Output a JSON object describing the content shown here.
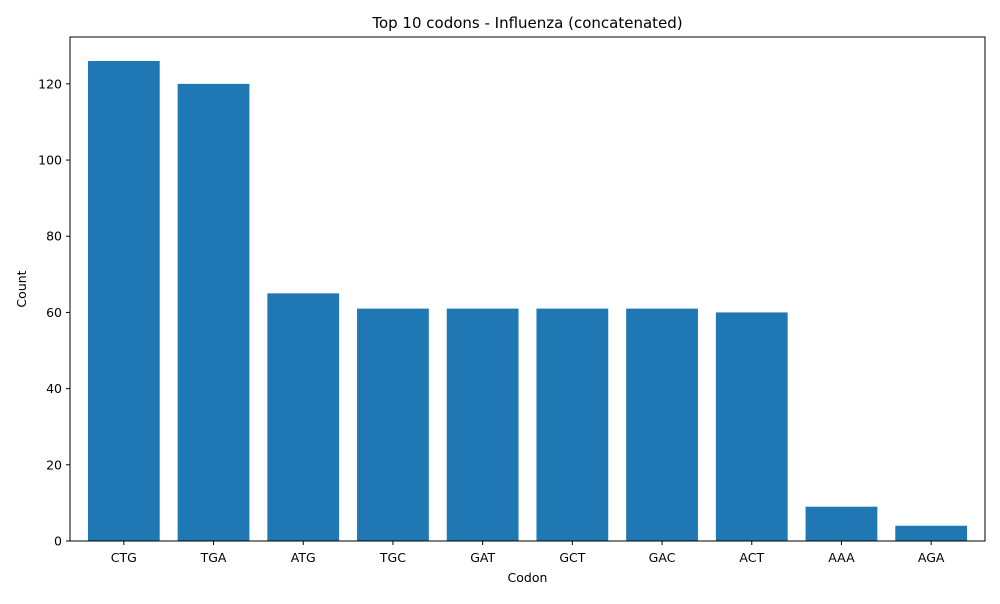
{
  "chart_data": {
    "type": "bar",
    "title": "Top 10 codons - Influenza (concatenated)",
    "xlabel": "Codon",
    "ylabel": "Count",
    "categories": [
      "CTG",
      "TGA",
      "ATG",
      "TGC",
      "GAT",
      "GCT",
      "GAC",
      "ACT",
      "AAA",
      "AGA"
    ],
    "values": [
      126,
      120,
      65,
      61,
      61,
      61,
      61,
      60,
      9,
      4
    ],
    "ylim": [
      0,
      132.3
    ],
    "yticks": [
      0,
      20,
      40,
      60,
      80,
      100,
      120
    ],
    "bar_color": "#1f77b4",
    "grid": false,
    "legend": "none"
  }
}
